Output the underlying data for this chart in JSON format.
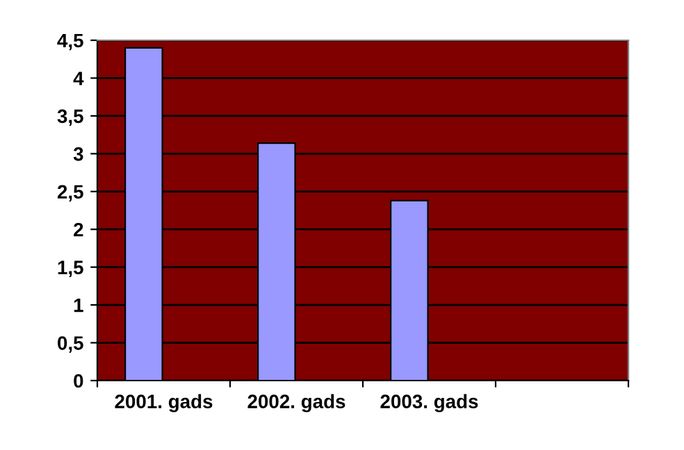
{
  "chart_data": {
    "type": "bar",
    "categories": [
      "2001. gads",
      "2002. gads",
      "2003. gads",
      null
    ],
    "series": [
      {
        "color": "#9999ff",
        "values": [
          4.4,
          3.14,
          2.38,
          null
        ]
      }
    ],
    "ylim": [
      0,
      4.5
    ],
    "yticks": [
      0,
      {
        "value": 0.5,
        "label": "0,5"
      },
      1,
      {
        "value": 1.5,
        "label": "1,5"
      },
      2,
      {
        "value": 2.5,
        "label": "2,5"
      },
      3,
      {
        "value": 3.5,
        "label": "3,5"
      },
      4,
      {
        "value": 4.5,
        "label": "4,5"
      }
    ],
    "grid": "y",
    "legend": false
  }
}
